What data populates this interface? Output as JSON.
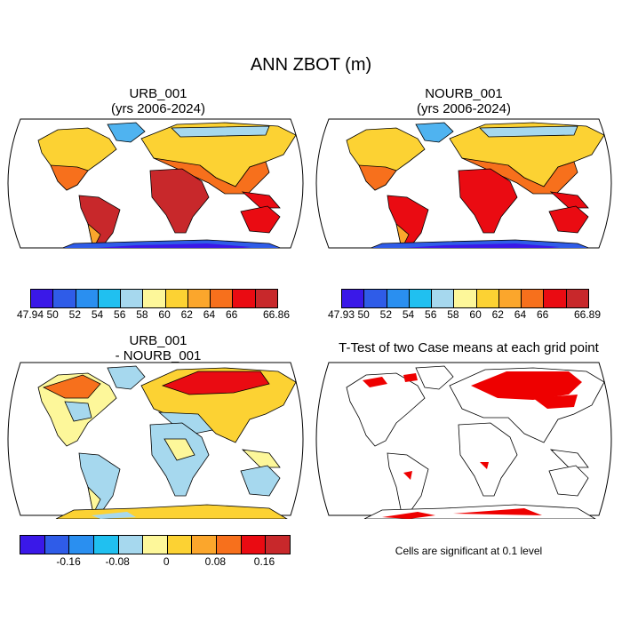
{
  "title": "ANN ZBOT (m)",
  "panels": {
    "urb": {
      "title1": "URB_001",
      "title2": "(yrs 2006-2024)"
    },
    "nourb": {
      "title1": "NOURB_001",
      "title2": "(yrs 2006-2024)"
    },
    "diff": {
      "title1": "URB_001",
      "title2": "- NOURB_001"
    },
    "ttest": {
      "title": "T-Test of two Case means at each grid point",
      "note": "Cells are significant at 0.1 level"
    }
  },
  "colors": {
    "abs_palette": [
      "#3a18e8",
      "#2f5ce8",
      "#2a8ff0",
      "#20c0f0",
      "#a6d8ee",
      "#fdf79a",
      "#fcd233",
      "#fba62c",
      "#f7701c",
      "#ea0b12",
      "#c8282b"
    ],
    "diff_palette": [
      "#3a18e8",
      "#2f5ce8",
      "#2a8ff0",
      "#20c0f0",
      "#a6d8ee",
      "#fdf79a",
      "#fcd233",
      "#fba62c",
      "#f7701c",
      "#ea0b12",
      "#c8282b"
    ],
    "significance": "#ee0000"
  },
  "colorbars": {
    "urb": [
      "47.94",
      "50",
      "52",
      "54",
      "56",
      "58",
      "60",
      "62",
      "64",
      "66",
      "66.86"
    ],
    "nourb": [
      "47.93",
      "50",
      "52",
      "54",
      "56",
      "58",
      "60",
      "62",
      "64",
      "66",
      "66.89"
    ],
    "diff": [
      "-0.16",
      "-0.08",
      "0",
      "0.08",
      "0.16"
    ]
  }
}
